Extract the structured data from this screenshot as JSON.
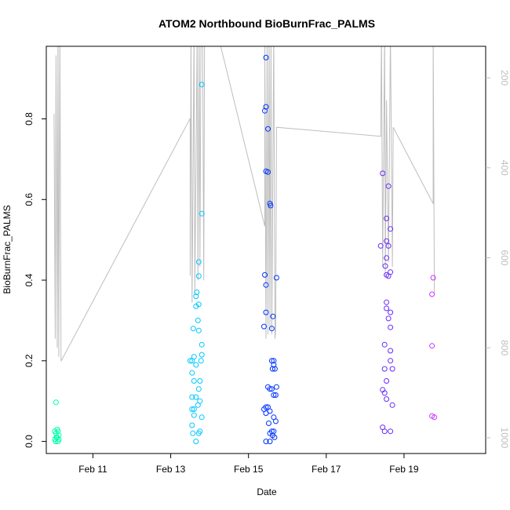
{
  "chart_data": {
    "type": "scatter",
    "title": "ATOM2 Northbound BioBurnFrac_PALMS",
    "xlabel": "Date",
    "ylabel": "BioBurnFrac_PALMS",
    "x_unit": "days (Feb date, fractional)",
    "xlim": [
      9.8,
      21.1
    ],
    "ylim": [
      -0.03,
      0.98
    ],
    "x_ticks": [
      11,
      13,
      15,
      17,
      19
    ],
    "x_tick_labels": [
      "Feb 11",
      "Feb 13",
      "Feb 15",
      "Feb 17",
      "Feb 19"
    ],
    "y_ticks": [
      0.0,
      0.2,
      0.4,
      0.6,
      0.8
    ],
    "y_tick_labels": [
      "0.0",
      "0.2",
      "0.4",
      "0.6",
      "0.8"
    ],
    "right_axis": {
      "description": "altitude profile (grey line), inverted",
      "lim": [
        130,
        1035
      ],
      "ticks": [
        200,
        400,
        600,
        800,
        1000
      ],
      "tick_labels": [
        "200",
        "400",
        "600",
        "800",
        "1000"
      ],
      "color": "#bebebe"
    },
    "grid": false,
    "legend": "none",
    "point_colors_by_time": [
      "#00ffaa",
      "#00c8ff",
      "#0033ff",
      "#6a2bff",
      "#cc33ff"
    ],
    "series": [
      {
        "points": [
          [
            10.05,
            0.097
          ],
          [
            10.02,
            0.025
          ],
          [
            10.05,
            0.02
          ],
          [
            10.08,
            0.03
          ],
          [
            10.04,
            0.0
          ],
          [
            10.08,
            0.01
          ],
          [
            10.1,
            0.0
          ],
          [
            10.12,
            0.015
          ],
          [
            10.02,
            0.005
          ],
          [
            10.06,
            0.01
          ],
          [
            10.1,
            0.025
          ],
          [
            10.12,
            0.005
          ],
          [
            13.5,
            0.2
          ],
          [
            13.55,
            0.2
          ],
          [
            13.6,
            0.21
          ],
          [
            13.65,
            0.19
          ],
          [
            13.55,
            0.17
          ],
          [
            13.6,
            0.15
          ],
          [
            13.55,
            0.11
          ],
          [
            13.65,
            0.11
          ],
          [
            13.6,
            0.08
          ],
          [
            13.55,
            0.08
          ],
          [
            13.7,
            0.09
          ],
          [
            13.75,
            0.1
          ],
          [
            13.6,
            0.065
          ],
          [
            13.55,
            0.04
          ],
          [
            13.8,
            0.06
          ],
          [
            13.57,
            0.02
          ],
          [
            13.65,
            0.0
          ],
          [
            13.72,
            0.02
          ],
          [
            13.75,
            0.025
          ],
          [
            13.58,
            0.28
          ],
          [
            13.7,
            0.3
          ],
          [
            13.72,
            0.275
          ],
          [
            13.65,
            0.335
          ],
          [
            13.72,
            0.34
          ],
          [
            13.65,
            0.36
          ],
          [
            13.67,
            0.37
          ],
          [
            13.72,
            0.41
          ],
          [
            13.72,
            0.445
          ],
          [
            13.8,
            0.215
          ],
          [
            13.8,
            0.24
          ],
          [
            13.72,
            0.13
          ],
          [
            13.75,
            0.15
          ],
          [
            13.78,
            0.2
          ],
          [
            13.8,
            0.565
          ],
          [
            13.8,
            0.885
          ],
          [
            15.45,
            0.952
          ],
          [
            15.45,
            0.83
          ],
          [
            15.42,
            0.82
          ],
          [
            15.5,
            0.775
          ],
          [
            15.45,
            0.67
          ],
          [
            15.5,
            0.668
          ],
          [
            15.55,
            0.59
          ],
          [
            15.57,
            0.585
          ],
          [
            15.42,
            0.413
          ],
          [
            15.45,
            0.388
          ],
          [
            15.72,
            0.406
          ],
          [
            15.45,
            0.32
          ],
          [
            15.63,
            0.31
          ],
          [
            15.4,
            0.285
          ],
          [
            15.6,
            0.28
          ],
          [
            15.6,
            0.2
          ],
          [
            15.65,
            0.2
          ],
          [
            15.62,
            0.18
          ],
          [
            15.68,
            0.18
          ],
          [
            15.65,
            0.19
          ],
          [
            15.5,
            0.135
          ],
          [
            15.55,
            0.13
          ],
          [
            15.6,
            0.13
          ],
          [
            15.72,
            0.135
          ],
          [
            15.65,
            0.115
          ],
          [
            15.7,
            0.115
          ],
          [
            15.4,
            0.08
          ],
          [
            15.45,
            0.085
          ],
          [
            15.5,
            0.085
          ],
          [
            15.55,
            0.075
          ],
          [
            15.45,
            0.07
          ],
          [
            15.52,
            0.045
          ],
          [
            15.6,
            0.025
          ],
          [
            15.65,
            0.025
          ],
          [
            15.55,
            0.02
          ],
          [
            15.62,
            0.015
          ],
          [
            15.67,
            0.01
          ],
          [
            15.7,
            0.05
          ],
          [
            15.65,
            0.06
          ],
          [
            15.45,
            0.0
          ],
          [
            15.55,
            0.0
          ],
          [
            18.4,
            0.485
          ],
          [
            18.45,
            0.665
          ],
          [
            18.6,
            0.633
          ],
          [
            18.55,
            0.553
          ],
          [
            18.65,
            0.527
          ],
          [
            18.55,
            0.497
          ],
          [
            18.6,
            0.485
          ],
          [
            18.55,
            0.455
          ],
          [
            18.52,
            0.435
          ],
          [
            18.55,
            0.413
          ],
          [
            18.6,
            0.41
          ],
          [
            18.65,
            0.42
          ],
          [
            18.55,
            0.345
          ],
          [
            18.55,
            0.33
          ],
          [
            18.6,
            0.305
          ],
          [
            18.65,
            0.32
          ],
          [
            18.65,
            0.283
          ],
          [
            18.5,
            0.24
          ],
          [
            18.65,
            0.225
          ],
          [
            18.65,
            0.2
          ],
          [
            18.5,
            0.18
          ],
          [
            18.7,
            0.18
          ],
          [
            18.55,
            0.15
          ],
          [
            18.45,
            0.128
          ],
          [
            18.5,
            0.12
          ],
          [
            18.55,
            0.105
          ],
          [
            18.7,
            0.09
          ],
          [
            18.45,
            0.035
          ],
          [
            18.5,
            0.025
          ],
          [
            18.65,
            0.025
          ],
          [
            19.75,
            0.406
          ],
          [
            19.72,
            0.365
          ],
          [
            19.72,
            0.237
          ],
          [
            19.72,
            0.063
          ],
          [
            19.78,
            0.06
          ]
        ]
      }
    ],
    "altitude_trace": [
      [
        10.0,
        280
      ],
      [
        10.03,
        780
      ],
      [
        10.05,
        150
      ],
      [
        10.08,
        800
      ],
      [
        10.1,
        100
      ],
      [
        10.12,
        820
      ],
      [
        10.15,
        100
      ],
      [
        10.18,
        830
      ],
      [
        13.5,
        290
      ],
      [
        13.5,
        640
      ],
      [
        13.52,
        100
      ],
      [
        13.55,
        700
      ],
      [
        13.6,
        100
      ],
      [
        13.62,
        680
      ],
      [
        13.68,
        100
      ],
      [
        13.7,
        650
      ],
      [
        13.73,
        100
      ],
      [
        13.75,
        620
      ],
      [
        13.78,
        100
      ],
      [
        13.82,
        100
      ],
      [
        13.85,
        650
      ],
      [
        13.87,
        100
      ],
      [
        14.2,
        100
      ],
      [
        15.42,
        530
      ],
      [
        15.42,
        100
      ],
      [
        15.45,
        780
      ],
      [
        15.48,
        100
      ],
      [
        15.5,
        770
      ],
      [
        15.53,
        100
      ],
      [
        15.55,
        760
      ],
      [
        15.58,
        100
      ],
      [
        15.6,
        770
      ],
      [
        15.65,
        100
      ],
      [
        15.68,
        780
      ],
      [
        15.7,
        760
      ],
      [
        15.72,
        310
      ],
      [
        18.4,
        330
      ],
      [
        18.42,
        100
      ],
      [
        18.45,
        620
      ],
      [
        18.5,
        100
      ],
      [
        18.52,
        640
      ],
      [
        18.55,
        250
      ],
      [
        18.6,
        610
      ],
      [
        18.65,
        100
      ],
      [
        18.7,
        620
      ],
      [
        18.72,
        310
      ],
      [
        19.75,
        480
      ],
      [
        19.75,
        100
      ],
      [
        19.78,
        680
      ]
    ]
  }
}
